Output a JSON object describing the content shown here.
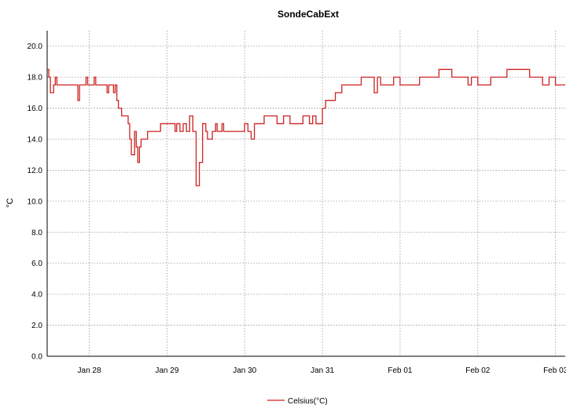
{
  "chart_data": {
    "type": "line",
    "title": "SondeCabExt",
    "ylabel": "°C",
    "xlabel": "",
    "ylim": [
      0,
      21
    ],
    "yticks": [
      "0.0",
      "2.0",
      "4.0",
      "6.0",
      "8.0",
      "10.0",
      "12.0",
      "14.0",
      "16.0",
      "18.0",
      "20.0"
    ],
    "xlim": [
      "Jan 27 11:00",
      "Feb 03 03:00"
    ],
    "xticks": [
      "Jan 28",
      "Jan 29",
      "Jan 30",
      "Jan 31",
      "Feb 01",
      "Feb 02",
      "Feb 03"
    ],
    "grid": true,
    "legend_position": "bottom",
    "series": [
      {
        "name": "Celsius(°C)",
        "color": "#cc2222",
        "x": [
          "Jan 27 11:00",
          "Jan 27 11:30",
          "Jan 27 12:00",
          "Jan 27 13:00",
          "Jan 27 13:30",
          "Jan 27 14:00",
          "Jan 27 14:30",
          "Jan 27 15:00",
          "Jan 27 16:00",
          "Jan 27 18:00",
          "Jan 27 20:00",
          "Jan 27 20:30",
          "Jan 27 21:00",
          "Jan 27 22:00",
          "Jan 27 23:00",
          "Jan 27 23:30",
          "Jan 28 01:00",
          "Jan 28 01:30",
          "Jan 28 02:00",
          "Jan 28 02:30",
          "Jan 28 03:00",
          "Jan 28 05:00",
          "Jan 28 05:30",
          "Jan 28 06:00",
          "Jan 28 07:00",
          "Jan 28 07:30",
          "Jan 28 08:00",
          "Jan 28 08:30",
          "Jan 28 09:00",
          "Jan 28 10:00",
          "Jan 28 11:00",
          "Jan 28 12:00",
          "Jan 28 12:30",
          "Jan 28 13:00",
          "Jan 28 14:00",
          "Jan 28 14:30",
          "Jan 28 15:00",
          "Jan 28 15:30",
          "Jan 28 16:00",
          "Jan 28 17:00",
          "Jan 28 18:00",
          "Jan 28 19:00",
          "Jan 28 19:30",
          "Jan 28 20:00",
          "Jan 28 20:30",
          "Jan 28 21:00",
          "Jan 28 22:00",
          "Jan 29 02:00",
          "Jan 29 02:30",
          "Jan 29 03:00",
          "Jan 29 04:00",
          "Jan 29 05:00",
          "Jan 29 06:00",
          "Jan 29 07:00",
          "Jan 29 08:00",
          "Jan 29 09:00",
          "Jan 29 10:00",
          "Jan 29 11:00",
          "Jan 29 12:00",
          "Jan 29 12:30",
          "Jan 29 13:00",
          "Jan 29 13:30",
          "Jan 29 14:00",
          "Jan 29 15:00",
          "Jan 29 15:30",
          "Jan 29 16:00",
          "Jan 29 17:00",
          "Jan 29 17:30",
          "Jan 29 18:00",
          "Jan 29 20:00",
          "Jan 29 22:00",
          "Jan 30 00:00",
          "Jan 30 01:00",
          "Jan 30 02:00",
          "Jan 30 03:00",
          "Jan 30 04:00",
          "Jan 30 06:00",
          "Jan 30 10:00",
          "Jan 30 12:00",
          "Jan 30 13:00",
          "Jan 30 14:00",
          "Jan 30 16:00",
          "Jan 30 18:00",
          "Jan 30 20:00",
          "Jan 30 21:00",
          "Jan 30 22:00",
          "Jan 31 00:00",
          "Jan 31 01:00",
          "Jan 31 02:00",
          "Jan 31 04:00",
          "Jan 31 06:00",
          "Jan 31 08:00",
          "Jan 31 10:00",
          "Jan 31 12:00",
          "Jan 31 13:00",
          "Jan 31 14:00",
          "Jan 31 15:00",
          "Jan 31 16:00",
          "Jan 31 17:00",
          "Jan 31 18:00",
          "Jan 31 20:00",
          "Jan 31 22:00",
          "Feb 01 00:00",
          "Feb 01 06:00",
          "Feb 01 09:00",
          "Feb 01 10:00",
          "Feb 01 12:00",
          "Feb 01 14:00",
          "Feb 01 16:00",
          "Feb 01 18:00",
          "Feb 01 20:00",
          "Feb 01 21:00",
          "Feb 01 22:00",
          "Feb 02 00:00",
          "Feb 02 04:00",
          "Feb 02 05:00",
          "Feb 02 06:00",
          "Feb 02 07:00",
          "Feb 02 08:00",
          "Feb 02 09:00",
          "Feb 02 12:00",
          "Feb 02 14:00",
          "Feb 02 16:00",
          "Feb 02 18:00",
          "Feb 02 20:00",
          "Feb 02 22:00",
          "Feb 03 00:00",
          "Feb 03 01:00",
          "Feb 03 02:00",
          "Feb 03 03:00"
        ],
        "y": [
          18.5,
          18.0,
          17.0,
          17.5,
          18.0,
          17.5,
          17.5,
          17.5,
          17.5,
          17.5,
          17.5,
          16.5,
          17.5,
          17.5,
          18.0,
          17.5,
          17.5,
          18.0,
          17.5,
          17.5,
          17.5,
          17.5,
          17.0,
          17.5,
          17.5,
          17.0,
          17.5,
          16.5,
          16.0,
          15.5,
          15.5,
          15.0,
          14.0,
          13.0,
          14.5,
          13.5,
          12.5,
          13.5,
          14.0,
          14.0,
          14.5,
          14.5,
          14.5,
          14.5,
          14.5,
          14.5,
          15.0,
          15.0,
          14.5,
          15.0,
          14.5,
          15.0,
          14.5,
          15.5,
          14.5,
          11.0,
          12.5,
          15.0,
          14.5,
          14.0,
          14.0,
          14.0,
          14.5,
          15.0,
          14.5,
          14.5,
          15.0,
          14.5,
          14.5,
          14.5,
          14.5,
          15.0,
          14.5,
          14.0,
          15.0,
          15.0,
          15.5,
          15.0,
          15.5,
          15.5,
          15.0,
          15.0,
          15.5,
          15.0,
          15.5,
          15.0,
          16.0,
          16.5,
          16.5,
          17.0,
          17.5,
          17.5,
          17.5,
          18.0,
          18.0,
          18.0,
          18.0,
          17.0,
          18.0,
          17.5,
          17.5,
          18.0,
          17.5,
          18.0,
          18.0,
          18.0,
          18.5,
          18.5,
          18.0,
          18.0,
          18.0,
          17.5,
          18.0,
          17.5,
          18.0,
          18.0,
          18.0,
          18.0,
          18.0,
          18.5,
          18.5,
          18.5,
          18.0,
          18.0,
          17.5,
          18.0,
          17.5,
          17.5,
          17.5,
          17.5
        ]
      }
    ]
  }
}
